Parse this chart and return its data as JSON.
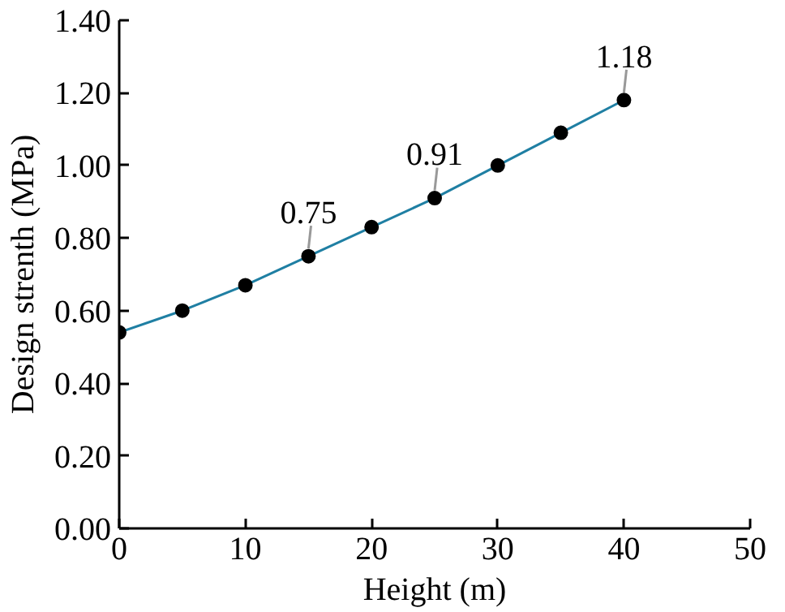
{
  "chart_data": {
    "type": "line",
    "xlabel": "Height (m)",
    "ylabel": "Design strenth (MPa)",
    "x": [
      0,
      5,
      10,
      15,
      20,
      25,
      30,
      35,
      40
    ],
    "series": [
      {
        "color": "#1f7fa3",
        "values": [
          0.54,
          0.6,
          0.67,
          0.75,
          0.83,
          0.91,
          1.0,
          1.09,
          1.18
        ],
        "value_labels": [
          null,
          null,
          null,
          "0.75",
          null,
          "0.91",
          null,
          null,
          "1.18"
        ]
      }
    ],
    "xlim": [
      0,
      50
    ],
    "xticks": [
      0,
      10,
      20,
      30,
      40,
      50
    ],
    "ylim": [
      0,
      1.4
    ],
    "yticks": [
      {
        "value": 0,
        "label": "0.00"
      },
      {
        "value": 0.2,
        "label": "0.20"
      },
      {
        "value": 0.4,
        "label": "0.40"
      },
      {
        "value": 0.6,
        "label": "0.60"
      },
      {
        "value": 0.8,
        "label": "0.80"
      },
      {
        "value": 1.0,
        "label": "1.00"
      },
      {
        "value": 1.2,
        "label": "1.20"
      },
      {
        "value": 1.4,
        "label": "1.40"
      }
    ],
    "grid": false,
    "marker": "circle",
    "line_style": "solid"
  }
}
